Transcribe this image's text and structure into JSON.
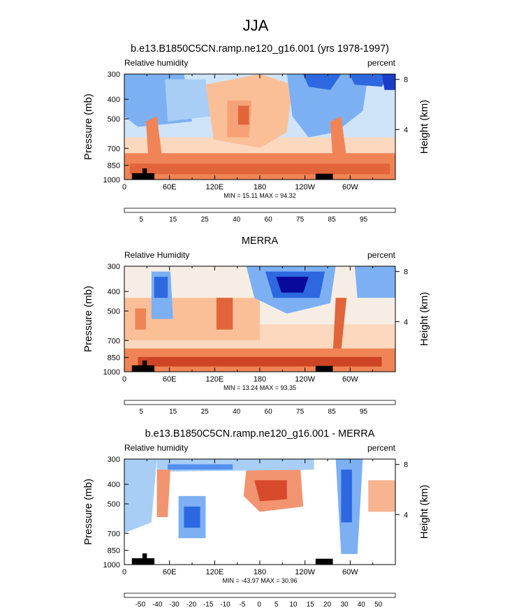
{
  "main_title": "JJA",
  "chart_data": [
    {
      "type": "heatmap",
      "title": "b.e13.B1850C5CN.ramp.ne120_g16.001 (yrs 1978-1997)",
      "left_string": "Relative humidity",
      "right_string": "percent",
      "ylabel": "Pressure (mb)",
      "ylabel_right": "Height (km)",
      "x_ticks": [
        "0",
        "60E",
        "120E",
        "180",
        "120W",
        "60W"
      ],
      "y_ticks": [
        "300",
        "400",
        "500",
        "700",
        "850",
        "1000"
      ],
      "y_right_ticks": [
        "8",
        "4"
      ],
      "stats": "MIN =  15.11  MAX =  94.32",
      "colorbar_labels": [
        "5",
        "15",
        "25",
        "40",
        "60",
        "75",
        "85",
        "95"
      ],
      "colorbar_colors": [
        "#08089a",
        "#1a3ec8",
        "#2d68e0",
        "#5290ee",
        "#7cb0f3",
        "#a8cef6",
        "#cfe4f8",
        "#f6eee4",
        "#fbd8be",
        "#fbbf98",
        "#f7a276",
        "#f08456",
        "#e2643a",
        "#cf4424",
        "#b42a18",
        "#8c1208"
      ],
      "min": 15.11,
      "max": 94.32
    },
    {
      "type": "heatmap",
      "title": "MERRA",
      "left_string": "Relative Humidity",
      "right_string": "percent",
      "ylabel": "Pressure (mb)",
      "ylabel_right": "Height (km)",
      "x_ticks": [
        "0",
        "60E",
        "120E",
        "180",
        "120W",
        "60W"
      ],
      "y_ticks": [
        "300",
        "400",
        "500",
        "700",
        "850",
        "1000"
      ],
      "y_right_ticks": [
        "8",
        "4"
      ],
      "stats": "MIN =  13.24  MAX =  93.35",
      "colorbar_labels": [
        "5",
        "15",
        "25",
        "40",
        "60",
        "75",
        "85",
        "95"
      ],
      "colorbar_colors": [
        "#08089a",
        "#1a3ec8",
        "#2d68e0",
        "#5290ee",
        "#7cb0f3",
        "#a8cef6",
        "#cfe4f8",
        "#f6eee4",
        "#fbd8be",
        "#fbbf98",
        "#f7a276",
        "#f08456",
        "#e2643a",
        "#cf4424",
        "#b42a18",
        "#8c1208"
      ],
      "min": 13.24,
      "max": 93.35
    },
    {
      "type": "heatmap",
      "title": "b.e13.B1850C5CN.ramp.ne120_g16.001 - MERRA",
      "left_string": "Relative humidity",
      "right_string": "percent",
      "ylabel": "Pressure (mb)",
      "ylabel_right": "Height (km)",
      "x_ticks": [
        "0",
        "60E",
        "120E",
        "180",
        "120W",
        "60W"
      ],
      "y_ticks": [
        "300",
        "400",
        "500",
        "700",
        "850",
        "1000"
      ],
      "y_right_ticks": [
        "8",
        "4"
      ],
      "stats": "MIN = -43.97  MAX =  30.96",
      "colorbar_labels": [
        "-50",
        "-40",
        "-30",
        "-20",
        "-15",
        "-10",
        "-5",
        "0",
        "5",
        "10",
        "15",
        "20",
        "30",
        "40",
        "50"
      ],
      "colorbar_colors": [
        "#08089a",
        "#1a3ec8",
        "#2d68e0",
        "#5290ee",
        "#7cb0f3",
        "#a8cef6",
        "#cfe4f8",
        "#ffffff",
        "#ffffff",
        "#fbe4d2",
        "#fbd0b4",
        "#f8b490",
        "#f29470",
        "#e9704c",
        "#d84a2c",
        "#b82818",
        "#8c1208"
      ],
      "min": -43.97,
      "max": 30.96
    }
  ]
}
